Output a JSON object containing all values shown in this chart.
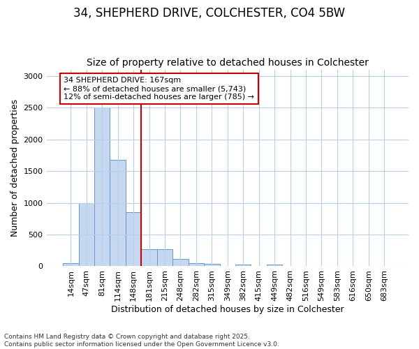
{
  "title_line1": "34, SHEPHERD DRIVE, COLCHESTER, CO4 5BW",
  "title_line2": "Size of property relative to detached houses in Colchester",
  "xlabel": "Distribution of detached houses by size in Colchester",
  "ylabel": "Number of detached properties",
  "bar_labels": [
    "14sqm",
    "47sqm",
    "81sqm",
    "114sqm",
    "148sqm",
    "181sqm",
    "215sqm",
    "248sqm",
    "282sqm",
    "315sqm",
    "349sqm",
    "382sqm",
    "415sqm",
    "449sqm",
    "482sqm",
    "516sqm",
    "549sqm",
    "583sqm",
    "616sqm",
    "650sqm",
    "683sqm"
  ],
  "bar_values": [
    50,
    1000,
    2500,
    1680,
    850,
    270,
    270,
    120,
    50,
    40,
    0,
    30,
    0,
    25,
    0,
    0,
    0,
    0,
    0,
    0,
    0
  ],
  "bar_color": "#c5d8f0",
  "bar_edge_color": "#6699cc",
  "vline_x": 5,
  "vline_color": "#cc0000",
  "annotation_text": "34 SHEPHERD DRIVE: 167sqm\n← 88% of detached houses are smaller (5,743)\n12% of semi-detached houses are larger (785) →",
  "annotation_box_facecolor": "#ffffff",
  "annotation_box_edgecolor": "#cc0000",
  "background_color": "#ffffff",
  "plot_bg_color": "#ffffff",
  "ylim": [
    0,
    3100
  ],
  "yticks": [
    0,
    500,
    1000,
    1500,
    2000,
    2500,
    3000
  ],
  "footer_text": "Contains HM Land Registry data © Crown copyright and database right 2025.\nContains public sector information licensed under the Open Government Licence v3.0.",
  "title_fontsize": 12,
  "subtitle_fontsize": 10,
  "axis_label_fontsize": 9,
  "tick_fontsize": 8,
  "annotation_fontsize": 8
}
